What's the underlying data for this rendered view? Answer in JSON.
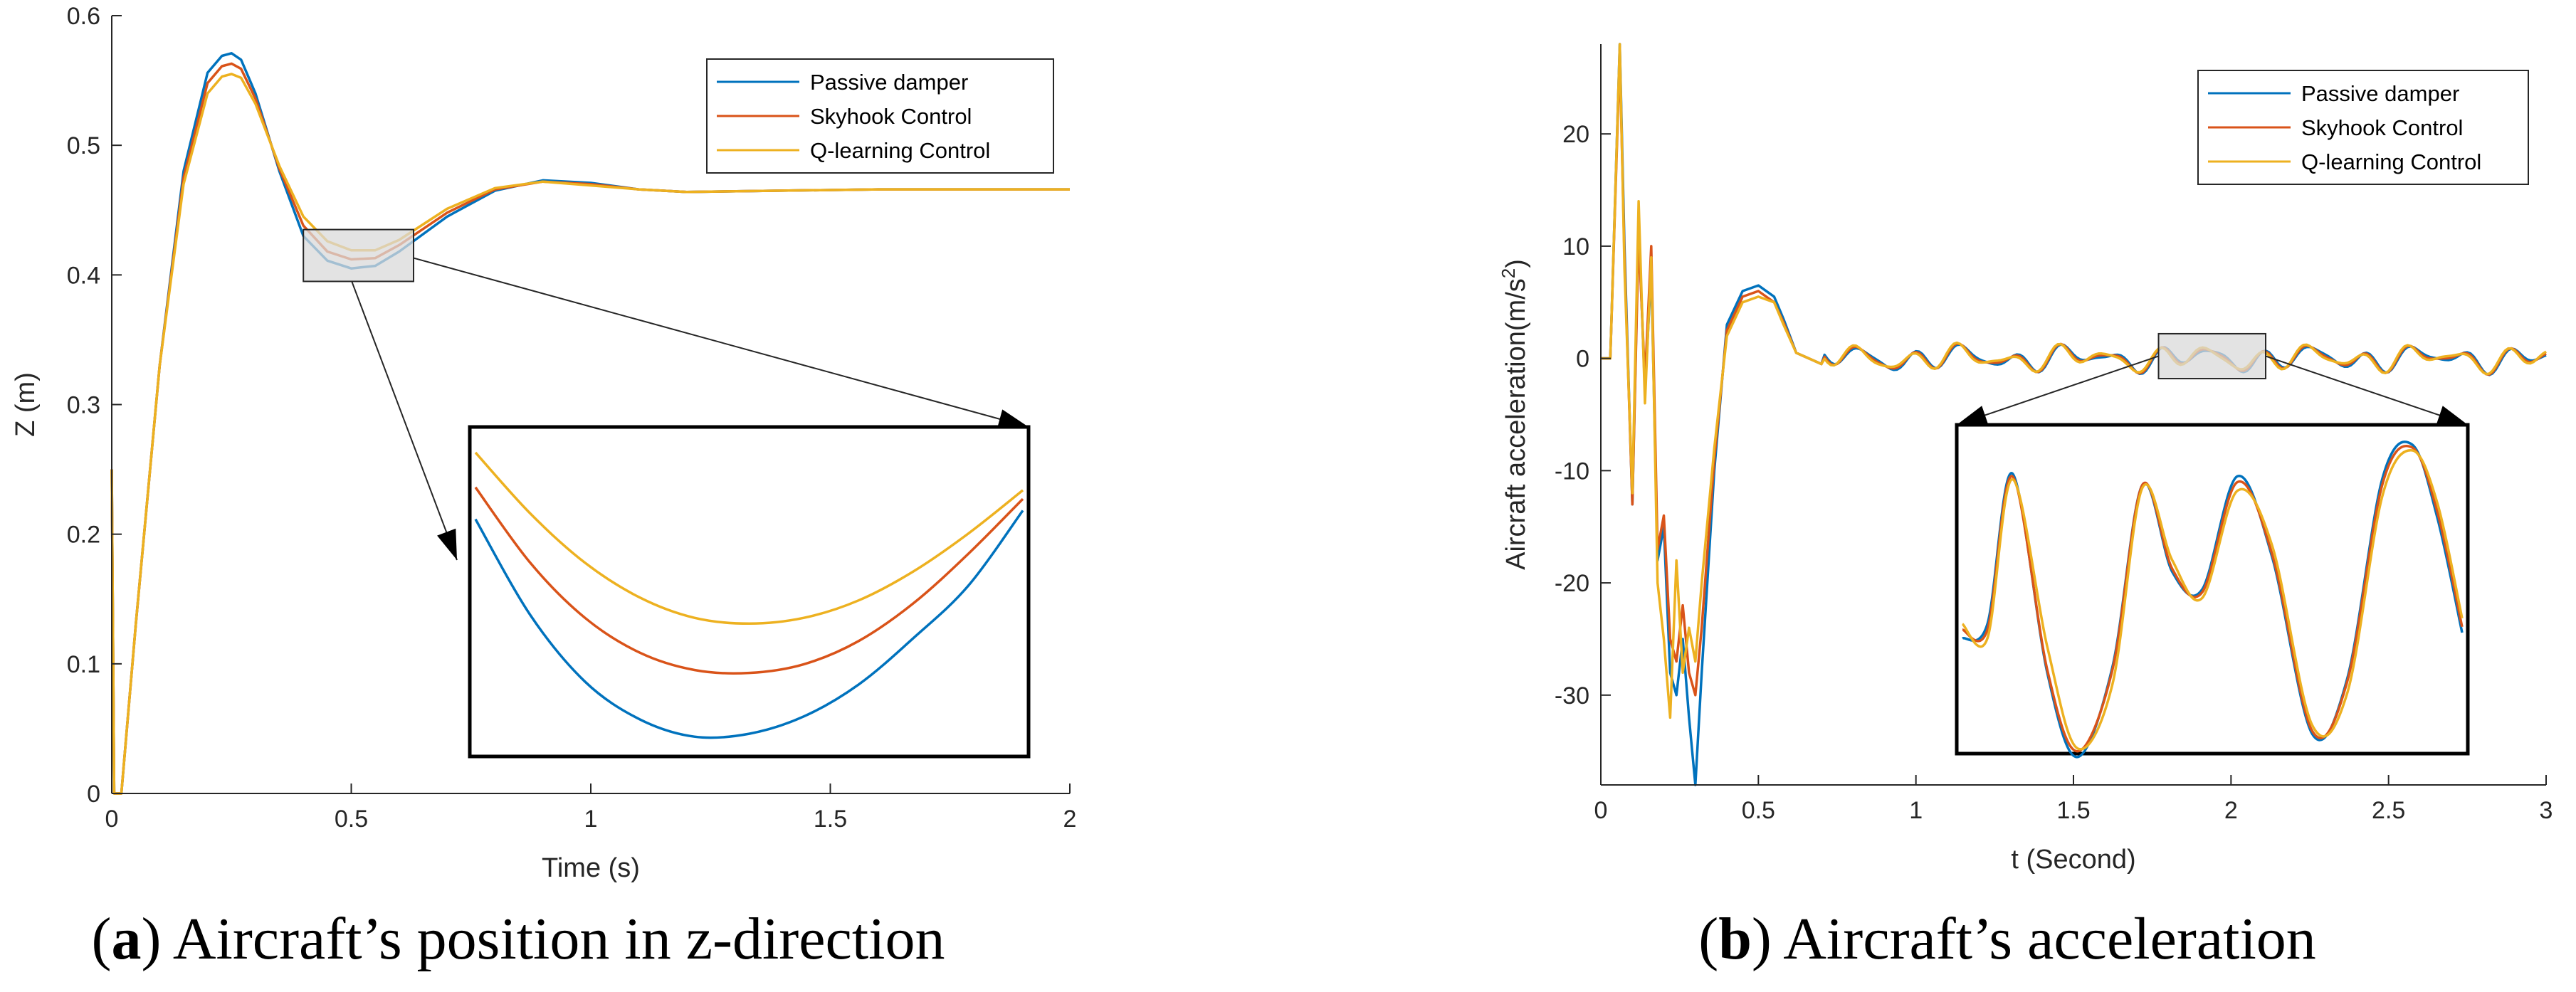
{
  "colors": {
    "passive": "#0072BD",
    "skyhook": "#D95319",
    "qlearn": "#EDB120",
    "axis": "#262626",
    "zoom_fill": "#d9d9d9"
  },
  "chart_data": [
    {
      "id": "a",
      "type": "line",
      "xlabel": "Time (s)",
      "ylabel": "Z (m)",
      "xlim": [
        0,
        2
      ],
      "ylim": [
        0,
        0.6
      ],
      "xticks": [
        0,
        0.5,
        1,
        1.5,
        2
      ],
      "xticklabels": [
        "0",
        "0.5",
        "1",
        "1.5",
        "2"
      ],
      "yticks": [
        0,
        0.1,
        0.2,
        0.3,
        0.4,
        0.5,
        0.6
      ],
      "yticklabels": [
        "0",
        "0.1",
        "0.2",
        "0.3",
        "0.4",
        "0.5",
        "0.6"
      ],
      "legend": [
        "Passive damper",
        "Skyhook Control",
        "Q-learning Control"
      ],
      "legend_position": "top-right",
      "series": [
        {
          "name": "Passive damper",
          "color_key": "passive",
          "x": [
            0,
            0.005,
            0.02,
            0.05,
            0.1,
            0.15,
            0.2,
            0.23,
            0.25,
            0.27,
            0.3,
            0.35,
            0.4,
            0.45,
            0.5,
            0.55,
            0.6,
            0.7,
            0.8,
            0.9,
            1.0,
            1.1,
            1.2,
            1.4,
            1.6,
            1.8,
            2.0
          ],
          "y": [
            0.25,
            0.0,
            0.0,
            0.13,
            0.33,
            0.48,
            0.556,
            0.569,
            0.571,
            0.566,
            0.54,
            0.48,
            0.43,
            0.411,
            0.405,
            0.407,
            0.418,
            0.445,
            0.465,
            0.473,
            0.471,
            0.466,
            0.464,
            0.465,
            0.466,
            0.466,
            0.466
          ]
        },
        {
          "name": "Skyhook Control",
          "color_key": "skyhook",
          "x": [
            0,
            0.005,
            0.02,
            0.05,
            0.1,
            0.15,
            0.2,
            0.23,
            0.25,
            0.27,
            0.3,
            0.35,
            0.4,
            0.45,
            0.5,
            0.55,
            0.6,
            0.7,
            0.8,
            0.9,
            1.0,
            1.1,
            1.2,
            1.4,
            1.6,
            1.8,
            2.0
          ],
          "y": [
            0.25,
            0.0,
            0.0,
            0.13,
            0.33,
            0.475,
            0.548,
            0.561,
            0.563,
            0.559,
            0.536,
            0.482,
            0.438,
            0.418,
            0.412,
            0.413,
            0.423,
            0.448,
            0.466,
            0.472,
            0.47,
            0.466,
            0.464,
            0.465,
            0.466,
            0.466,
            0.466
          ]
        },
        {
          "name": "Q-learning Control",
          "color_key": "qlearn",
          "x": [
            0,
            0.005,
            0.02,
            0.05,
            0.1,
            0.15,
            0.2,
            0.23,
            0.25,
            0.27,
            0.3,
            0.35,
            0.4,
            0.45,
            0.5,
            0.55,
            0.6,
            0.7,
            0.8,
            0.9,
            1.0,
            1.1,
            1.2,
            1.4,
            1.6,
            1.8,
            2.0
          ],
          "y": [
            0.25,
            0.0,
            0.0,
            0.13,
            0.33,
            0.47,
            0.54,
            0.553,
            0.555,
            0.552,
            0.532,
            0.484,
            0.445,
            0.426,
            0.419,
            0.419,
            0.427,
            0.451,
            0.467,
            0.472,
            0.469,
            0.466,
            0.464,
            0.465,
            0.466,
            0.466,
            0.466
          ]
        }
      ],
      "zoom": {
        "xrange": [
          0.4,
          0.63
        ],
        "yrange": [
          0.395,
          0.435
        ],
        "inset_series": [
          {
            "color_key": "passive",
            "x": [
              0,
              0.1,
              0.2,
              0.3,
              0.4,
              0.5,
              0.6,
              0.7,
              0.8,
              0.9,
              1.0
            ],
            "y": [
              0.75,
              0.42,
              0.19,
              0.06,
              0.0,
              0.01,
              0.07,
              0.18,
              0.34,
              0.52,
              0.78
            ]
          },
          {
            "color_key": "skyhook",
            "x": [
              0,
              0.1,
              0.2,
              0.3,
              0.4,
              0.5,
              0.6,
              0.7,
              0.8,
              0.9,
              1.0
            ],
            "y": [
              0.86,
              0.6,
              0.41,
              0.29,
              0.23,
              0.22,
              0.25,
              0.33,
              0.46,
              0.63,
              0.82
            ]
          },
          {
            "color_key": "qlearn",
            "x": [
              0,
              0.1,
              0.2,
              0.3,
              0.4,
              0.5,
              0.6,
              0.7,
              0.8,
              0.9,
              1.0
            ],
            "y": [
              0.98,
              0.77,
              0.6,
              0.48,
              0.41,
              0.39,
              0.41,
              0.47,
              0.57,
              0.7,
              0.85
            ]
          }
        ]
      }
    },
    {
      "id": "b",
      "type": "line",
      "xlabel": "t (Second)",
      "ylabel": "Aircraft acceleration(m/s",
      "ylabel_sup": "2",
      "ylabel_end": ")",
      "xlim": [
        0,
        3
      ],
      "ylim": [
        -38,
        28
      ],
      "xticks": [
        0,
        0.5,
        1,
        1.5,
        2,
        2.5,
        3
      ],
      "xticklabels": [
        "0",
        "0.5",
        "1",
        "1.5",
        "2",
        "2.5",
        "3"
      ],
      "yticks": [
        -30,
        -20,
        -10,
        0,
        10,
        20
      ],
      "yticklabels": [
        "-30",
        "-20",
        "-10",
        "0",
        "10",
        "20"
      ],
      "legend": [
        "Passive damper",
        "Skyhook Control",
        "Q-learning Control"
      ],
      "legend_position": "top-right",
      "series": [
        {
          "name": "Passive damper",
          "color_key": "passive",
          "x": [
            0,
            0.03,
            0.06,
            0.075,
            0.1,
            0.12,
            0.14,
            0.16,
            0.18,
            0.2,
            0.22,
            0.24,
            0.26,
            0.28,
            0.3,
            0.32,
            0.36,
            0.4,
            0.45,
            0.5,
            0.55,
            0.58,
            0.62,
            0.7
          ],
          "y": [
            0,
            0,
            28,
            10,
            -13,
            12,
            -3,
            8,
            -18,
            -15,
            -28,
            -30,
            -25,
            -32,
            -38,
            -28,
            -10,
            3,
            6,
            6.5,
            5.5,
            3.5,
            0.5,
            -0.5
          ]
        },
        {
          "name": "Skyhook Control",
          "color_key": "skyhook",
          "x": [
            0,
            0.03,
            0.06,
            0.075,
            0.1,
            0.12,
            0.14,
            0.16,
            0.18,
            0.2,
            0.22,
            0.24,
            0.26,
            0.28,
            0.3,
            0.32,
            0.36,
            0.4,
            0.45,
            0.5,
            0.55,
            0.58,
            0.62,
            0.7
          ],
          "y": [
            0,
            0,
            27,
            9,
            -13,
            11,
            -2,
            10,
            -17,
            -14,
            -25,
            -27,
            -22,
            -28,
            -30,
            -24,
            -9,
            2.5,
            5.5,
            6,
            5,
            3.2,
            0.5,
            -0.5
          ]
        },
        {
          "name": "Q-learning Control",
          "color_key": "qlearn",
          "x": [
            0,
            0.03,
            0.06,
            0.075,
            0.1,
            0.12,
            0.14,
            0.16,
            0.18,
            0.2,
            0.22,
            0.24,
            0.26,
            0.28,
            0.3,
            0.32,
            0.36,
            0.4,
            0.45,
            0.5,
            0.55,
            0.58,
            0.62,
            0.7
          ],
          "y": [
            0,
            0,
            28,
            8,
            -12,
            14,
            -4,
            9,
            -20,
            -25,
            -32,
            -18,
            -28,
            -24,
            -27,
            -20,
            -8,
            2,
            5,
            5.5,
            5,
            3,
            0.5,
            -0.5
          ]
        }
      ],
      "tail": {
        "x_start": 0.7,
        "x_end": 3.0,
        "step": 0.01,
        "amplitude": 1.3
      },
      "zoom": {
        "xrange": [
          1.77,
          2.11
        ],
        "yrange": [
          -1.8,
          2.2
        ],
        "inset_series": [
          {
            "color_key": "passive",
            "x": [
              0,
              0.05,
              0.1,
              0.17,
              0.23,
              0.3,
              0.36,
              0.42,
              0.48,
              0.55,
              0.62,
              0.7,
              0.77,
              0.84,
              0.9,
              0.95,
              1.0
            ],
            "y": [
              0.33,
              0.38,
              0.9,
              0.21,
              -0.08,
              0.23,
              0.86,
              0.56,
              0.5,
              0.89,
              0.61,
              0.0,
              0.19,
              0.88,
              1.0,
              0.75,
              0.35
            ]
          },
          {
            "color_key": "skyhook",
            "x": [
              0,
              0.05,
              0.1,
              0.17,
              0.23,
              0.3,
              0.36,
              0.42,
              0.48,
              0.55,
              0.62,
              0.7,
              0.77,
              0.84,
              0.9,
              0.95,
              1.0
            ],
            "y": [
              0.36,
              0.36,
              0.89,
              0.22,
              -0.06,
              0.22,
              0.86,
              0.57,
              0.49,
              0.87,
              0.62,
              0.01,
              0.18,
              0.86,
              0.99,
              0.77,
              0.37
            ]
          },
          {
            "color_key": "qlearn",
            "x": [
              0,
              0.05,
              0.1,
              0.17,
              0.23,
              0.3,
              0.36,
              0.42,
              0.48,
              0.55,
              0.62,
              0.7,
              0.77,
              0.84,
              0.9,
              0.95,
              1.0
            ],
            "y": [
              0.38,
              0.33,
              0.88,
              0.3,
              -0.05,
              0.17,
              0.85,
              0.6,
              0.47,
              0.84,
              0.65,
              0.03,
              0.14,
              0.82,
              0.98,
              0.8,
              0.4
            ]
          }
        ]
      }
    }
  ],
  "captions": {
    "a_label": "a",
    "a_text": "Aircraft’s position in z-direction",
    "b_label": "b",
    "b_text": "Aircraft’s acceleration"
  }
}
